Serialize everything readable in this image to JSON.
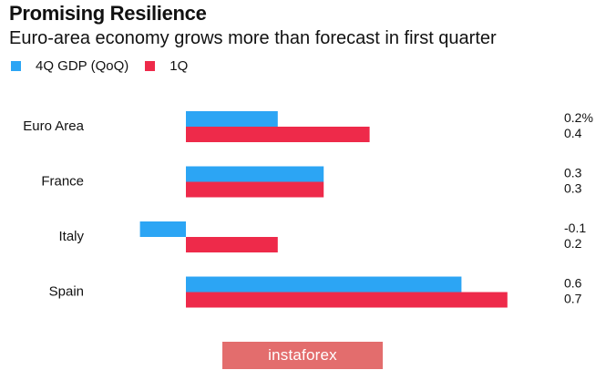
{
  "header": {
    "title": "Promising Resilience",
    "subtitle": "Euro-area economy grows more than forecast in first quarter"
  },
  "colors": {
    "series_1": "#2ca5f4",
    "series_2": "#ee2a4a"
  },
  "watermark": {
    "text": "instaforex"
  },
  "chart_data": {
    "type": "bar",
    "orientation": "horizontal",
    "title": "Promising Resilience",
    "subtitle": "Euro-area economy grows more than forecast in first quarter",
    "categories": [
      "Euro Area",
      "France",
      "Italy",
      "Spain"
    ],
    "series": [
      {
        "name": "4Q GDP (QoQ)",
        "values": [
          0.2,
          0.3,
          -0.1,
          0.6
        ],
        "labels": [
          "0.2%",
          "0.3",
          "-0.1",
          "0.6"
        ]
      },
      {
        "name": "1Q",
        "values": [
          0.4,
          0.3,
          0.2,
          0.7
        ],
        "labels": [
          "0.4",
          "0.3",
          "0.2",
          "0.7"
        ]
      }
    ],
    "xlim": [
      -0.1,
      0.7
    ],
    "grid": false,
    "legend_position": "top-left",
    "xlabel": "",
    "ylabel": ""
  }
}
